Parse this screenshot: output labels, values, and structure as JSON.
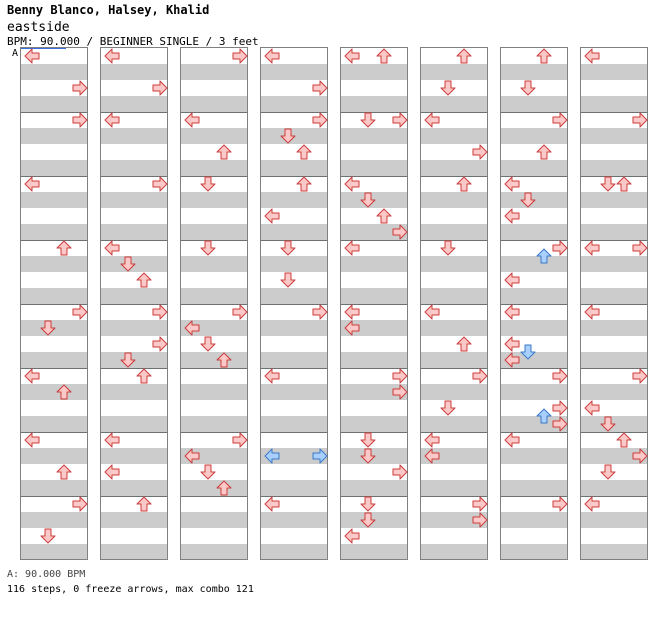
{
  "header": {
    "artist": "Benny Blanco, Halsey, Khalid",
    "title": "eastside",
    "info": "BPM: 90.000 / BEGINNER SINGLE / 3 feet"
  },
  "chart": {
    "bpm_marker": "A",
    "note_colors": {
      "quarter": {
        "fill": "#ffc8c8",
        "stroke": "#c83c3c"
      },
      "eighth": {
        "fill": "#a8d0ff",
        "stroke": "#3c78c8"
      }
    },
    "columns": [
      {
        "notes": [
          {
            "lane": "L",
            "beat": 0
          },
          {
            "lane": "R",
            "beat": 2
          },
          {
            "lane": "R",
            "beat": 4
          },
          {
            "lane": "L",
            "beat": 8
          },
          {
            "lane": "U",
            "beat": 12
          },
          {
            "lane": "R",
            "beat": 16
          },
          {
            "lane": "D",
            "beat": 17
          },
          {
            "lane": "L",
            "beat": 20
          },
          {
            "lane": "U",
            "beat": 21
          },
          {
            "lane": "L",
            "beat": 24
          },
          {
            "lane": "U",
            "beat": 26
          },
          {
            "lane": "R",
            "beat": 28
          },
          {
            "lane": "D",
            "beat": 30
          }
        ]
      },
      {
        "notes": [
          {
            "lane": "L",
            "beat": 0
          },
          {
            "lane": "R",
            "beat": 2
          },
          {
            "lane": "L",
            "beat": 4
          },
          {
            "lane": "R",
            "beat": 8
          },
          {
            "lane": "L",
            "beat": 12
          },
          {
            "lane": "D",
            "beat": 13
          },
          {
            "lane": "U",
            "beat": 14
          },
          {
            "lane": "R",
            "beat": 16
          },
          {
            "lane": "R",
            "beat": 18
          },
          {
            "lane": "D",
            "beat": 19
          },
          {
            "lane": "U",
            "beat": 20
          },
          {
            "lane": "L",
            "beat": 24
          },
          {
            "lane": "L",
            "beat": 26
          },
          {
            "lane": "U",
            "beat": 28
          }
        ]
      },
      {
        "notes": [
          {
            "lane": "R",
            "beat": 0
          },
          {
            "lane": "L",
            "beat": 4
          },
          {
            "lane": "U",
            "beat": 6
          },
          {
            "lane": "D",
            "beat": 8
          },
          {
            "lane": "D",
            "beat": 12
          },
          {
            "lane": "R",
            "beat": 16
          },
          {
            "lane": "L",
            "beat": 17
          },
          {
            "lane": "D",
            "beat": 18
          },
          {
            "lane": "U",
            "beat": 19
          },
          {
            "lane": "R",
            "beat": 24
          },
          {
            "lane": "L",
            "beat": 25
          },
          {
            "lane": "D",
            "beat": 26
          },
          {
            "lane": "U",
            "beat": 27
          }
        ]
      },
      {
        "notes": [
          {
            "lane": "L",
            "beat": 0
          },
          {
            "lane": "R",
            "beat": 2
          },
          {
            "lane": "R",
            "beat": 4
          },
          {
            "lane": "D",
            "beat": 5
          },
          {
            "lane": "U",
            "beat": 6
          },
          {
            "lane": "U",
            "beat": 8
          },
          {
            "lane": "L",
            "beat": 10
          },
          {
            "lane": "D",
            "beat": 12
          },
          {
            "lane": "D",
            "beat": 14
          },
          {
            "lane": "R",
            "beat": 16
          },
          {
            "lane": "L",
            "beat": 20
          },
          {
            "lane": "L",
            "beat": 25,
            "color": "eighth"
          },
          {
            "lane": "R",
            "beat": 25,
            "color": "eighth"
          },
          {
            "lane": "L",
            "beat": 28
          }
        ]
      },
      {
        "notes": [
          {
            "lane": "L",
            "beat": 0
          },
          {
            "lane": "U",
            "beat": 0
          },
          {
            "lane": "D",
            "beat": 4
          },
          {
            "lane": "R",
            "beat": 4
          },
          {
            "lane": "L",
            "beat": 8
          },
          {
            "lane": "D",
            "beat": 9
          },
          {
            "lane": "U",
            "beat": 10
          },
          {
            "lane": "R",
            "beat": 11
          },
          {
            "lane": "L",
            "beat": 12
          },
          {
            "lane": "L",
            "beat": 16
          },
          {
            "lane": "L",
            "beat": 17
          },
          {
            "lane": "R",
            "beat": 20
          },
          {
            "lane": "R",
            "beat": 21
          },
          {
            "lane": "D",
            "beat": 24
          },
          {
            "lane": "D",
            "beat": 25
          },
          {
            "lane": "R",
            "beat": 26
          },
          {
            "lane": "D",
            "beat": 28
          },
          {
            "lane": "D",
            "beat": 29
          },
          {
            "lane": "L",
            "beat": 30
          }
        ]
      },
      {
        "notes": [
          {
            "lane": "U",
            "beat": 0
          },
          {
            "lane": "D",
            "beat": 2
          },
          {
            "lane": "L",
            "beat": 4
          },
          {
            "lane": "R",
            "beat": 6
          },
          {
            "lane": "U",
            "beat": 8
          },
          {
            "lane": "D",
            "beat": 12
          },
          {
            "lane": "L",
            "beat": 16
          },
          {
            "lane": "U",
            "beat": 18
          },
          {
            "lane": "R",
            "beat": 20
          },
          {
            "lane": "D",
            "beat": 22
          },
          {
            "lane": "L",
            "beat": 24
          },
          {
            "lane": "L",
            "beat": 25
          },
          {
            "lane": "R",
            "beat": 28
          },
          {
            "lane": "R",
            "beat": 29
          }
        ]
      },
      {
        "notes": [
          {
            "lane": "U",
            "beat": 0
          },
          {
            "lane": "D",
            "beat": 2
          },
          {
            "lane": "R",
            "beat": 4
          },
          {
            "lane": "U",
            "beat": 6
          },
          {
            "lane": "L",
            "beat": 8
          },
          {
            "lane": "D",
            "beat": 9
          },
          {
            "lane": "L",
            "beat": 10
          },
          {
            "lane": "R",
            "beat": 12
          },
          {
            "lane": "U",
            "beat": 12.5,
            "color": "eighth"
          },
          {
            "lane": "L",
            "beat": 14
          },
          {
            "lane": "L",
            "beat": 16
          },
          {
            "lane": "L",
            "beat": 18
          },
          {
            "lane": "D",
            "beat": 18.5,
            "color": "eighth"
          },
          {
            "lane": "L",
            "beat": 19
          },
          {
            "lane": "R",
            "beat": 20
          },
          {
            "lane": "U",
            "beat": 22.5,
            "color": "eighth"
          },
          {
            "lane": "R",
            "beat": 22
          },
          {
            "lane": "R",
            "beat": 23
          },
          {
            "lane": "L",
            "beat": 24
          },
          {
            "lane": "R",
            "beat": 28
          }
        ]
      },
      {
        "notes": [
          {
            "lane": "L",
            "beat": 0
          },
          {
            "lane": "R",
            "beat": 4
          },
          {
            "lane": "D",
            "beat": 8
          },
          {
            "lane": "U",
            "beat": 8
          },
          {
            "lane": "L",
            "beat": 12
          },
          {
            "lane": "R",
            "beat": 12
          },
          {
            "lane": "L",
            "beat": 16
          },
          {
            "lane": "R",
            "beat": 20
          },
          {
            "lane": "L",
            "beat": 22
          },
          {
            "lane": "D",
            "beat": 23
          },
          {
            "lane": "U",
            "beat": 24
          },
          {
            "lane": "R",
            "beat": 25
          },
          {
            "lane": "D",
            "beat": 26
          },
          {
            "lane": "L",
            "beat": 28
          }
        ]
      }
    ]
  },
  "footer": {
    "bpm": "A: 90.000 BPM",
    "stats": "116 steps, 0 freeze arrows, max combo 121"
  }
}
